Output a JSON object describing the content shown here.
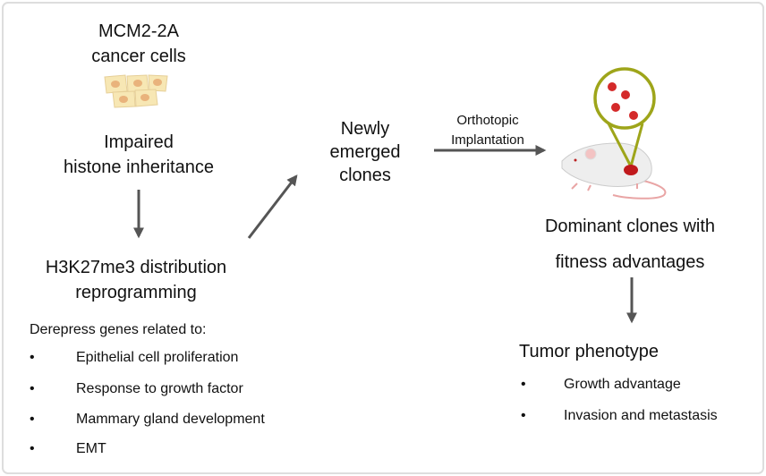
{
  "left": {
    "title_lines": [
      "MCM2-2A",
      "cancer cells"
    ],
    "step1_lines": [
      "Impaired",
      "histone inheritance"
    ],
    "step2_lines": [
      "H3K27me3 distribution",
      "reprogramming"
    ],
    "derepress_heading": "Derepress genes related to:",
    "bullet": "•",
    "genes": [
      "Epithelial cell proliferation",
      "Response to growth factor",
      "Mammary gland development",
      "EMT"
    ]
  },
  "middle": {
    "clones_lines": [
      "Newly",
      "emerged",
      "clones"
    ],
    "arrow_label_lines": [
      "Orthotopic",
      "Implantation"
    ]
  },
  "right": {
    "result_lines": [
      "Dominant clones with",
      "fitness advantages"
    ],
    "phenotype_heading": "Tumor phenotype",
    "phenotypes": [
      "Growth advantage",
      "Invasion and metastasis"
    ]
  },
  "colors": {
    "arrow": "#555555",
    "lens": "#9ea51a",
    "tumor": "#d42a2a",
    "cell": "#f7e7b4",
    "nucleus": "#e9b37c"
  },
  "icons": [
    "cancer-cells-icon",
    "mouse-icon",
    "magnifier-lens-icon"
  ]
}
